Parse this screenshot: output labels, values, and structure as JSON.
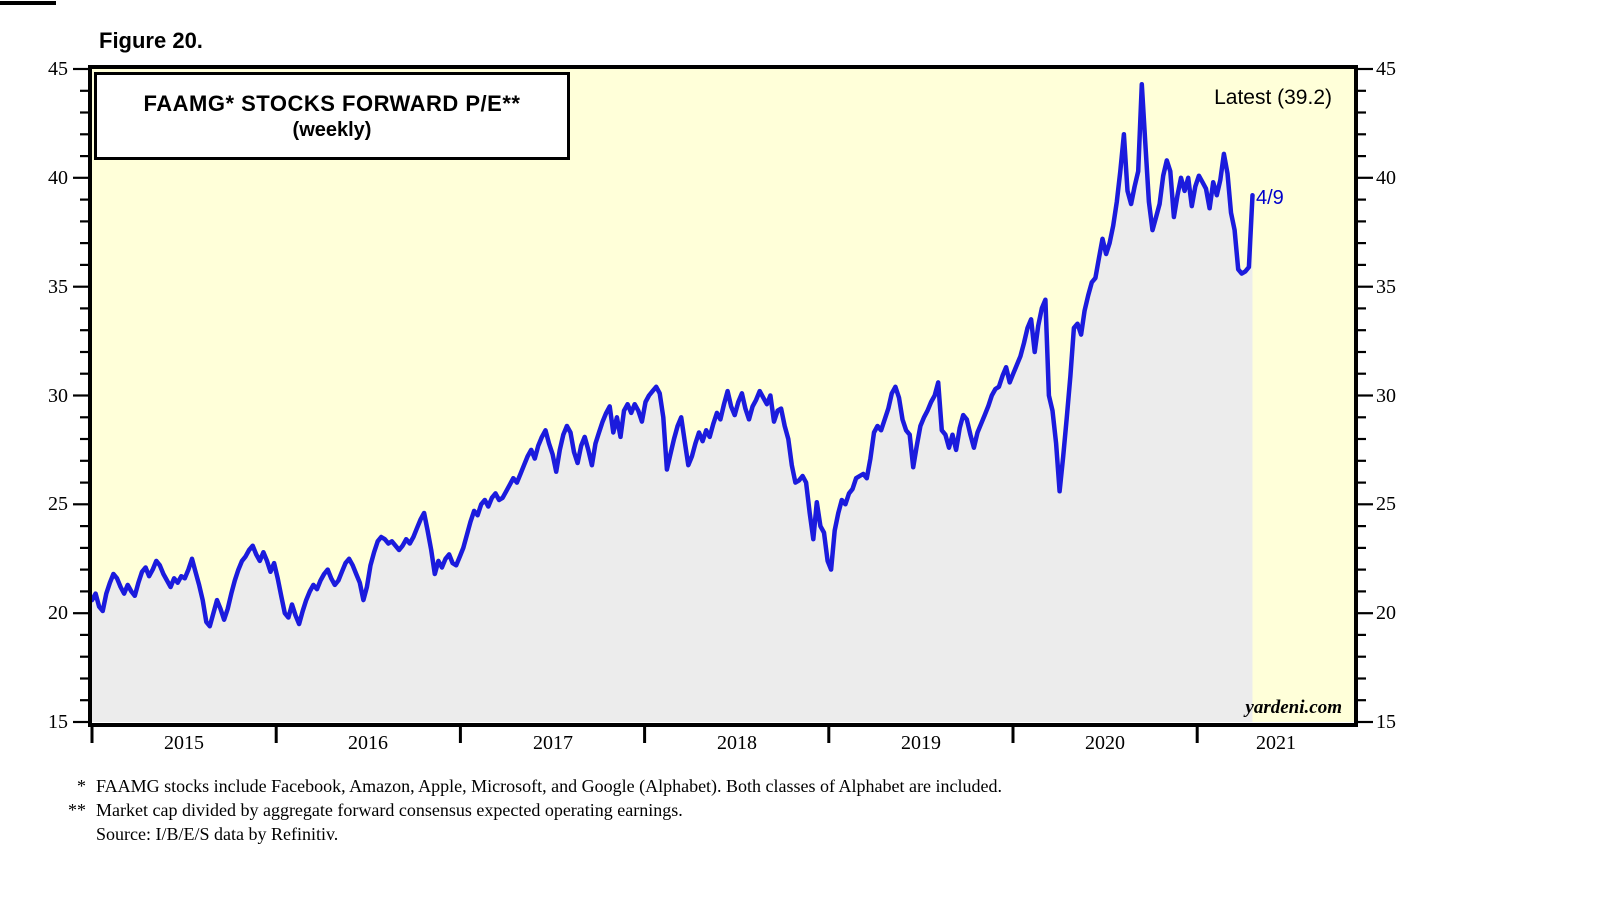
{
  "page": {
    "figure_label": "Figure 20."
  },
  "chart": {
    "title_line1": "FAAMG* STOCKS FORWARD P/E**",
    "title_line2": "(weekly)",
    "latest_label": "Latest (39.2)",
    "endpoint_label": "4/9",
    "watermark": "yardeni.com",
    "colors": {
      "line": "#1b1bdd",
      "area_fill": "#ececec",
      "plot_bg": "#ffffd9",
      "axis": "#000000",
      "annotation_blue": "#0000cc"
    }
  },
  "chart_data": {
    "type": "area",
    "title": "FAAMG* STOCKS FORWARD P/E** (weekly)",
    "subtitle": "(weekly)",
    "legend": "none",
    "grid": false,
    "frequency": "weekly",
    "x_start_year": 2015,
    "x_end_label": "4/9",
    "x_span_years": 6.3,
    "latest_value": 39.2,
    "ylim": [
      15,
      45
    ],
    "y_ticks": [
      15,
      20,
      25,
      30,
      35,
      40,
      45
    ],
    "y_minor_step": 1,
    "x_tick_labels": [
      "2015",
      "2016",
      "2017",
      "2018",
      "2019",
      "2020",
      "2021"
    ],
    "annotations": [
      {
        "text": "Latest (39.2)",
        "position": "top-right",
        "color": "#000000"
      },
      {
        "text": "4/9",
        "position": "at-series-end",
        "color": "#0000cc",
        "value": 39.2
      },
      {
        "text": "yardeni.com",
        "position": "bottom-right",
        "color": "#000000"
      }
    ],
    "values": [
      20.6,
      20.9,
      20.3,
      20.1,
      20.9,
      21.4,
      21.8,
      21.6,
      21.2,
      20.9,
      21.3,
      21.0,
      20.8,
      21.4,
      21.9,
      22.1,
      21.7,
      22.0,
      22.4,
      22.2,
      21.8,
      21.5,
      21.2,
      21.6,
      21.4,
      21.7,
      21.6,
      22.0,
      22.5,
      21.9,
      21.3,
      20.6,
      19.6,
      19.4,
      20.0,
      20.6,
      20.2,
      19.7,
      20.2,
      20.9,
      21.5,
      22.0,
      22.4,
      22.6,
      22.9,
      23.1,
      22.7,
      22.4,
      22.8,
      22.4,
      21.9,
      22.3,
      21.6,
      20.8,
      20.0,
      19.8,
      20.4,
      19.9,
      19.5,
      20.1,
      20.6,
      21.0,
      21.3,
      21.1,
      21.5,
      21.8,
      22.0,
      21.6,
      21.3,
      21.5,
      21.9,
      22.3,
      22.5,
      22.2,
      21.8,
      21.4,
      20.6,
      21.2,
      22.2,
      22.8,
      23.3,
      23.5,
      23.4,
      23.2,
      23.3,
      23.1,
      22.9,
      23.1,
      23.4,
      23.2,
      23.5,
      23.9,
      24.3,
      24.6,
      23.8,
      22.9,
      21.8,
      22.4,
      22.1,
      22.5,
      22.7,
      22.3,
      22.2,
      22.6,
      23.0,
      23.6,
      24.2,
      24.7,
      24.5,
      25.0,
      25.2,
      24.9,
      25.3,
      25.5,
      25.2,
      25.3,
      25.6,
      25.9,
      26.2,
      26.0,
      26.4,
      26.8,
      27.2,
      27.5,
      27.1,
      27.7,
      28.1,
      28.4,
      27.8,
      27.3,
      26.5,
      27.5,
      28.2,
      28.6,
      28.3,
      27.4,
      26.9,
      27.7,
      28.1,
      27.5,
      26.8,
      27.8,
      28.3,
      28.8,
      29.2,
      29.5,
      28.3,
      29.0,
      28.1,
      29.3,
      29.6,
      29.2,
      29.6,
      29.3,
      28.8,
      29.7,
      30.0,
      30.2,
      30.4,
      30.1,
      29.0,
      26.6,
      27.3,
      28.0,
      28.6,
      29.0,
      27.9,
      26.8,
      27.2,
      27.8,
      28.3,
      27.9,
      28.4,
      28.1,
      28.7,
      29.2,
      28.9,
      29.6,
      30.2,
      29.5,
      29.1,
      29.7,
      30.1,
      29.4,
      28.9,
      29.5,
      29.8,
      30.2,
      29.9,
      29.6,
      30.0,
      28.8,
      29.3,
      29.4,
      28.6,
      28.0,
      26.8,
      26.0,
      26.1,
      26.3,
      26.0,
      24.6,
      23.4,
      25.1,
      24.0,
      23.7,
      22.4,
      22.0,
      23.8,
      24.6,
      25.2,
      25.0,
      25.5,
      25.7,
      26.2,
      26.3,
      26.4,
      26.2,
      27.1,
      28.3,
      28.6,
      28.4,
      28.9,
      29.4,
      30.1,
      30.4,
      29.9,
      28.9,
      28.4,
      28.2,
      26.7,
      27.7,
      28.6,
      29.0,
      29.3,
      29.7,
      30.0,
      30.6,
      28.4,
      28.2,
      27.6,
      28.2,
      27.5,
      28.5,
      29.1,
      28.9,
      28.2,
      27.6,
      28.3,
      28.7,
      29.1,
      29.5,
      30.0,
      30.3,
      30.4,
      30.9,
      31.3,
      30.6,
      31.0,
      31.4,
      31.8,
      32.4,
      33.1,
      33.5,
      32.0,
      33.2,
      34.0,
      34.4,
      30.0,
      29.3,
      27.8,
      25.6,
      27.2,
      29.0,
      30.9,
      33.1,
      33.3,
      32.8,
      33.9,
      34.6,
      35.2,
      35.4,
      36.3,
      37.2,
      36.5,
      37.0,
      37.8,
      38.9,
      40.3,
      42.0,
      39.4,
      38.8,
      39.6,
      40.3,
      44.3,
      41.6,
      38.9,
      37.6,
      38.2,
      38.8,
      40.1,
      40.8,
      40.3,
      38.2,
      39.2,
      40.0,
      39.4,
      40.0,
      38.7,
      39.6,
      40.1,
      39.8,
      39.5,
      38.6,
      39.8,
      39.2,
      39.9,
      41.1,
      40.2,
      38.4,
      37.6,
      35.8,
      35.6,
      35.7,
      35.9,
      39.2
    ]
  },
  "footnotes": [
    {
      "marker": "*",
      "text": "FAAMG stocks include Facebook, Amazon, Apple, Microsoft, and Google (Alphabet). Both classes of Alphabet are included."
    },
    {
      "marker": "**",
      "text": "Market cap divided by aggregate forward consensus expected operating earnings."
    },
    {
      "marker": "",
      "text": "Source: I/B/E/S data by Refinitiv."
    }
  ]
}
